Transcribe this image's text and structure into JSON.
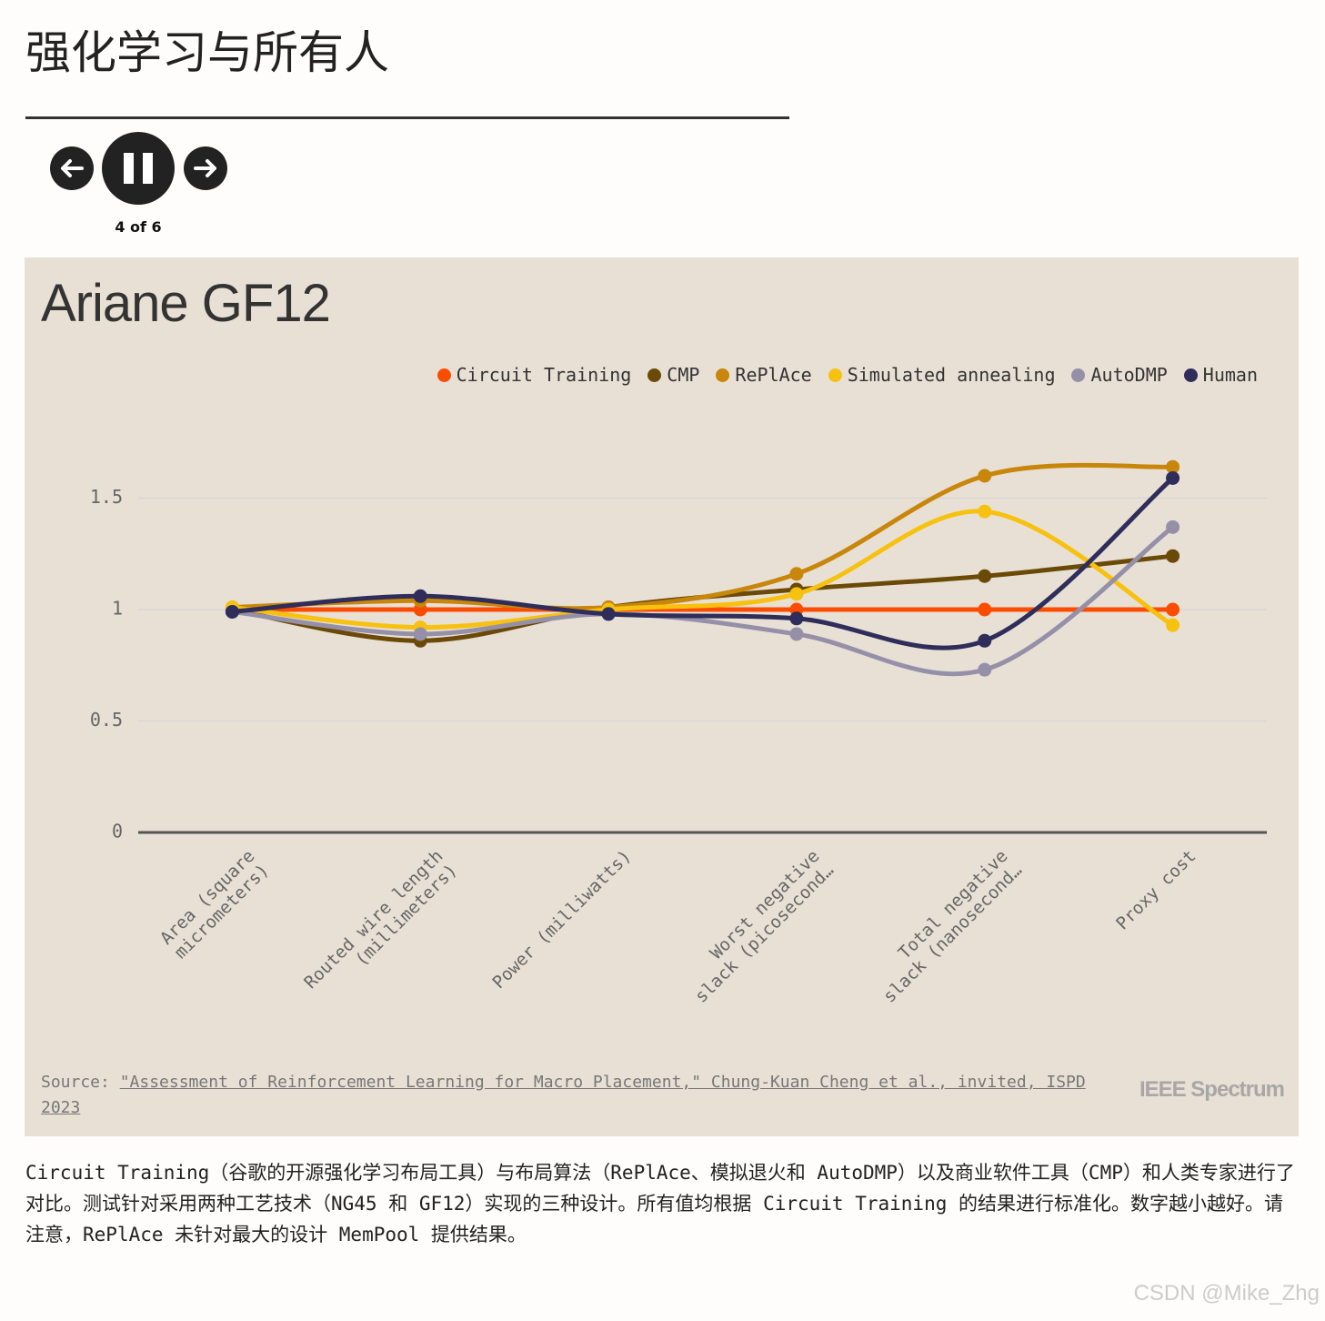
{
  "header": {
    "title": "强化学习与所有人"
  },
  "controls": {
    "counter": "4 of 6"
  },
  "chart_data": {
    "type": "line",
    "title": "Ariane GF12",
    "categories": [
      "Area (square micrometers)",
      "Routed wire length (millimeters)",
      "Power (milliwatts)",
      "Worst negative slack (picosecond…",
      "Total negative slack (nanosecond…",
      "Proxy cost"
    ],
    "series": [
      {
        "name": "Circuit Training",
        "color": "#fc4c02",
        "values": [
          1,
          1,
          1,
          1,
          1,
          1
        ]
      },
      {
        "name": "CMP",
        "color": "#6b4a07",
        "values": [
          1.0,
          0.86,
          1.01,
          1.09,
          1.15,
          1.24
        ]
      },
      {
        "name": "RePlAce",
        "color": "#c8860a",
        "values": [
          1.01,
          1.04,
          1.01,
          1.16,
          1.6,
          1.64
        ]
      },
      {
        "name": "Simulated annealing",
        "color": "#f7c10f",
        "values": [
          1.01,
          0.92,
          1.0,
          1.07,
          1.44,
          0.93
        ]
      },
      {
        "name": "AutoDMP",
        "color": "#9590a8",
        "values": [
          0.99,
          0.89,
          0.98,
          0.89,
          0.73,
          1.37
        ]
      },
      {
        "name": "Human",
        "color": "#2f2d5a",
        "values": [
          0.99,
          1.06,
          0.98,
          0.96,
          0.86,
          1.59
        ]
      }
    ],
    "ylim": [
      0,
      1.8
    ],
    "yticks": [
      0,
      0.5,
      1,
      1.5
    ],
    "grid": true,
    "legend": "top-right",
    "source_label": "Source:",
    "source": "\"Assessment of Reinforcement Learning for Macro Placement,\" Chung-Kuan Cheng et al., invited, ISPD 2023",
    "logo": "IEEE Spectrum"
  },
  "caption": "Circuit Training（谷歌的开源强化学习布局工具）与布局算法（RePlAce、模拟退火和 AutoDMP）以及商业软件工具（CMP）和人类专家进行了对比。测试针对采用两种工艺技术（NG45 和 GF12）实现的三种设计。所有值均根据 Circuit Training 的结果进行标准化。数字越小越好。请注意，RePlAce 未针对最大的设计 MemPool 提供结果。",
  "watermark": "CSDN @Mike_Zhg"
}
